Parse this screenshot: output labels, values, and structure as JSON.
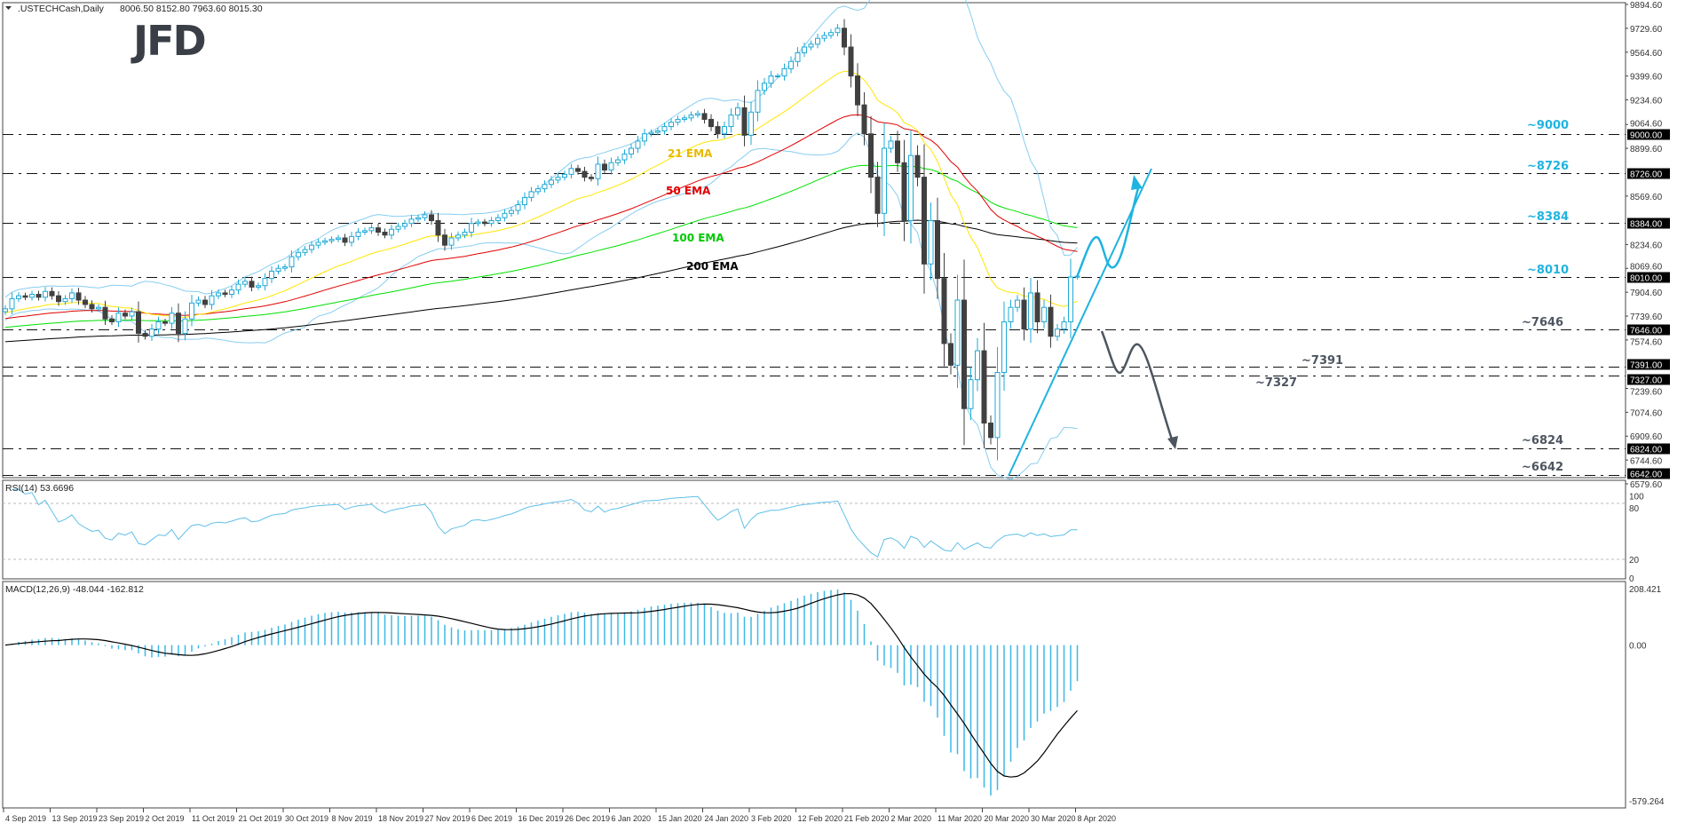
{
  "header": {
    "symbol": ".USTECHCash,Daily",
    "ohlc": "8006.50 8152.80 7963.60 8015.30"
  },
  "logo": "JFD",
  "colors": {
    "up": "#1fa9d6",
    "down": "#404040",
    "ema21": "#ffe600",
    "ema50": "#e00000",
    "ema100": "#00e000",
    "ema200": "#000000",
    "bands": "#87cdf0",
    "rsi": "#5fbfe8",
    "macd_hist": "#3cb8e6",
    "signal": "#000000",
    "cyan_annot": "#1fb3e0",
    "gray_annot": "#4d5560"
  },
  "chart_data": {
    "type": "candlestick",
    "price_axis": {
      "ylim": [
        6579.6,
        9894.6
      ],
      "ticks": [
        "9894.60",
        "9729.60",
        "9564.60",
        "9399.60",
        "9234.60",
        "9064.60",
        "8899.60",
        "8569.60",
        "8234.60",
        "8069.60",
        "7904.60",
        "7739.60",
        "7574.60",
        "7239.60",
        "7074.60",
        "6909.60",
        "6744.60",
        "6579.60"
      ]
    },
    "date_labels": [
      "4 Sep 2019",
      "13 Sep 2019",
      "23 Sep 2019",
      "2 Oct 2019",
      "11 Oct 2019",
      "21 Oct 2019",
      "30 Oct 2019",
      "8 Nov 2019",
      "18 Nov 2019",
      "27 Nov 2019",
      "6 Dec 2019",
      "16 Dec 2019",
      "26 Dec 2019",
      "6 Jan 2020",
      "15 Jan 2020",
      "24 Jan 2020",
      "3 Feb 2020",
      "12 Feb 2020",
      "21 Feb 2020",
      "2 Mar 2020",
      "11 Mar 2020",
      "20 Mar 2020",
      "30 Mar 2020",
      "8 Apr 2020"
    ],
    "close": [
      7790,
      7860,
      7880,
      7870,
      7890,
      7870,
      7910,
      7880,
      7840,
      7860,
      7900,
      7850,
      7820,
      7790,
      7800,
      7720,
      7700,
      7760,
      7740,
      7770,
      7620,
      7600,
      7650,
      7700,
      7690,
      7760,
      7620,
      7720,
      7830,
      7850,
      7820,
      7880,
      7900,
      7890,
      7920,
      7960,
      7980,
      7940,
      7950,
      8000,
      8050,
      8070,
      8080,
      8150,
      8180,
      8200,
      8230,
      8250,
      8260,
      8270,
      8280,
      8250,
      8290,
      8320,
      8330,
      8350,
      8320,
      8300,
      8340,
      8360,
      8380,
      8410,
      8420,
      8440,
      8400,
      8300,
      8230,
      8280,
      8300,
      8320,
      8380,
      8390,
      8380,
      8400,
      8420,
      8450,
      8470,
      8510,
      8560,
      8600,
      8620,
      8650,
      8680,
      8700,
      8720,
      8760,
      8740,
      8700,
      8690,
      8790,
      8750,
      8800,
      8820,
      8860,
      8900,
      8950,
      9000,
      9010,
      9020,
      9050,
      9080,
      9100,
      9110,
      9130,
      9140,
      9100,
      9050,
      9000,
      9050,
      9130,
      9180,
      8990,
      9150,
      9300,
      9350,
      9400,
      9400,
      9450,
      9500,
      9560,
      9600,
      9620,
      9660,
      9680,
      9700,
      9730,
      9600,
      9400,
      9200,
      9000,
      8700,
      8450,
      8900,
      8950,
      8800,
      8400,
      8850,
      8700,
      8100,
      8400,
      8000,
      7550,
      7400,
      7850,
      7100,
      7300,
      7500,
      7000,
      6900,
      7350,
      7700,
      7800,
      7850,
      7650,
      7900,
      7700,
      7800,
      7600,
      7650,
      7700,
      8010,
      8015
    ],
    "levels": [
      {
        "value": 9000,
        "box": "9000.00",
        "label": "~9000",
        "tone": "cyan"
      },
      {
        "value": 8726,
        "box": "8726.00",
        "label": "~8726",
        "tone": "cyan"
      },
      {
        "value": 8384,
        "box": "8384.00",
        "label": "~8384",
        "tone": "cyan"
      },
      {
        "value": 8010,
        "box": "8010.00",
        "label": "~8010",
        "tone": "cyan"
      },
      {
        "value": 7646,
        "box": "7646.00",
        "label": "~7646",
        "tone": "gray"
      },
      {
        "value": 7391,
        "box": "7391.00",
        "label": "~7391",
        "tone": "gray"
      },
      {
        "value": 7327,
        "box": "7327.00",
        "label": "~7327",
        "tone": "gray"
      },
      {
        "value": 6824,
        "box": "6824.00",
        "label": "~6824",
        "tone": "gray"
      },
      {
        "value": 6642,
        "box": "6642.00",
        "label": "~6642",
        "tone": "gray"
      }
    ],
    "ema_labels": {
      "ema21": "21 EMA",
      "ema50": "50 EMA",
      "ema100": "100 EMA",
      "ema200": "200 EMA"
    },
    "rsi": {
      "header": "RSI(14) 53.6696",
      "ticks": [
        "100",
        "80",
        "20",
        "0"
      ]
    },
    "macd": {
      "header": "MACD(12,26,9) -48.044 -162.812",
      "ticks": [
        "208.421",
        "0.00",
        "-579.264"
      ],
      "ylim": [
        -579.264,
        208.421
      ]
    }
  }
}
